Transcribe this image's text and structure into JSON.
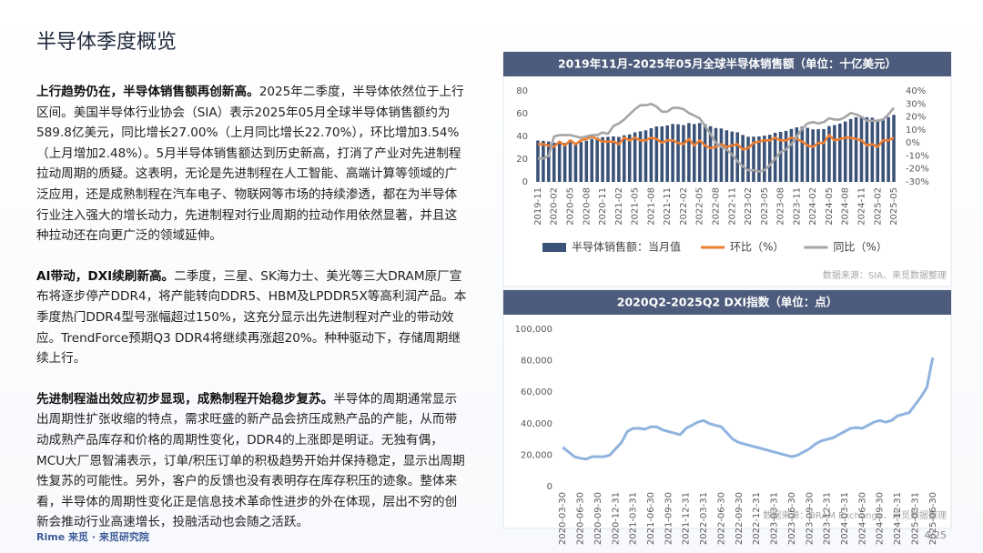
{
  "header": {
    "title": "半导体季度概览"
  },
  "paragraphs": [
    {
      "lead": "上行趋势仍在，半导体销售额再创新高。",
      "body": "2025年二季度，半导体依然位于上行区间。美国半导体行业协会（SIA）表示2025年05月全球半导体销售额约为589.8亿美元，同比增长27.00%（上月同比增长22.70%），环比增加3.54%（上月增加2.48%）。5月半导体销售额达到历史新高，打消了产业对先进制程拉动周期的质疑。这表明，无论是先进制程在人工智能、高端计算等领域的广泛应用，还是成熟制程在汽车电子、物联网等市场的持续渗透，都在为半导体行业注入强大的增长动力，先进制程对行业周期的拉动作用依然显著，并且这种拉动还在向更广泛的领域延伸。"
    },
    {
      "lead": "AI带动，DXI续刷新高。",
      "body": "二季度，三星、SK海力士、美光等三大DRAM原厂宣布将逐步停产DDR4，将产能转向DDR5、HBM及LPDDR5X等高利润产品。本季度热门DDR4型号涨幅超过150%，这充分显示出先进制程对产业的带动效应。TrendForce预期Q3 DDR4将继续再涨超20%。种种驱动下，存储周期继续上行。"
    },
    {
      "lead": "先进制程溢出效应初步显现，成熟制程开始稳步复苏。",
      "body": "半导体的周期通常显示出周期性扩张收缩的特点，需求旺盛的新产品会挤压成熟产品的产能，从而带动成熟产品库存和价格的周期性变化，DDR4的上涨即是明证。无独有偶，MCU大厂恩智浦表示，订单/积压订单的积极趋势开始并保持稳定，显示出周期性复苏的可能性。另外，客户的反馈也没有表明存在库存积压的迹象。整体来看，半导体的周期性变化正是信息技术革命性进步的外在体现，层出不穷的创新会推动行业高速增长，投融活动也会随之活跃。"
    }
  ],
  "chart_data": [
    {
      "type": "combo",
      "title": "2019年11月-2025年05月全球半导体销售额（单位：十亿美元）",
      "categories": [
        "2019-11",
        null,
        null,
        "2020-02",
        null,
        null,
        "2020-05",
        null,
        null,
        "2020-08",
        null,
        null,
        "2020-11",
        null,
        null,
        "2021-02",
        null,
        null,
        "2021-05",
        null,
        null,
        "2021-08",
        null,
        null,
        "2021-11",
        null,
        null,
        "2022-02",
        null,
        null,
        "2022-05",
        null,
        null,
        "2022-08",
        null,
        null,
        "2022-11",
        null,
        null,
        "2023-02",
        null,
        null,
        "2023-05",
        null,
        null,
        "2023-08",
        null,
        null,
        "2023-11",
        null,
        null,
        "2024-02",
        null,
        null,
        "2024-05",
        null,
        null,
        "2024-08",
        null,
        null,
        "2024-11",
        null,
        null,
        "2025-02",
        null,
        null,
        "2025-05"
      ],
      "series": [
        {
          "name": "半导体销售额：当月值",
          "type": "bar",
          "color": "#3b5278",
          "values": [
            36.4,
            36.1,
            35.5,
            34.5,
            35.0,
            34.2,
            35.0,
            34.5,
            35.2,
            36.2,
            37.9,
            39.0,
            39.4,
            39.6,
            40.0,
            39.6,
            41.0,
            41.8,
            43.6,
            44.5,
            45.4,
            47.2,
            48.8,
            48.8,
            49.7,
            50.9,
            50.7,
            50.0,
            51.7,
            50.9,
            51.8,
            50.8,
            49.0,
            47.4,
            47.0,
            45.4,
            44.3,
            43.7,
            41.3,
            39.7,
            39.8,
            40.0,
            40.7,
            41.5,
            43.2,
            44.0,
            44.9,
            46.6,
            48.0,
            48.6,
            47.6,
            46.2,
            46.4,
            46.4,
            49.1,
            50.0,
            51.3,
            53.1,
            55.3,
            56.9,
            57.8,
            56.9,
            56.5,
            54.9,
            55.9,
            57.0,
            59.0
          ]
        },
        {
          "name": "环比（%）",
          "type": "line",
          "axis": "y2",
          "color": "#ed7d31",
          "values": [
            -1,
            -1,
            -2,
            -3,
            1,
            -2,
            2,
            -1,
            2,
            3,
            5,
            3,
            1,
            1,
            1,
            -1,
            4,
            2,
            4,
            2,
            2,
            4,
            3,
            0,
            2,
            2,
            0,
            -1,
            3,
            -2,
            2,
            -2,
            -4,
            -3,
            -1,
            -3,
            -2,
            -1,
            -5,
            -4,
            0,
            1,
            2,
            2,
            4,
            2,
            2,
            4,
            3,
            1,
            -2,
            -3,
            0,
            0,
            6,
            2,
            3,
            4,
            4,
            3,
            2,
            -2,
            -1,
            -3,
            2,
            2,
            4
          ]
        },
        {
          "name": "同比（%）",
          "type": "line",
          "axis": "y2",
          "color": "#a5a5a5",
          "values": [
            -12,
            -12,
            -10,
            5,
            6,
            6,
            6,
            5,
            4,
            5,
            6,
            6,
            8,
            7,
            13,
            15,
            18,
            22,
            26,
            29,
            29,
            30,
            28,
            24,
            24,
            27,
            27,
            26,
            23,
            21,
            19,
            13,
            7,
            0,
            -3,
            -5,
            -9,
            -14,
            -18,
            -21,
            -21,
            -22,
            -21,
            -17,
            -12,
            -7,
            -5,
            -1,
            5,
            11,
            15,
            16,
            15,
            16,
            19,
            18,
            18,
            20,
            23,
            22,
            20,
            17,
            17,
            17,
            18,
            22,
            27
          ]
        }
      ],
      "ylim": [
        0,
        80
      ],
      "yticks": [
        0,
        20,
        40,
        60,
        80
      ],
      "y2lim": [
        -30,
        40
      ],
      "y2ticks": [
        {
          "value": 40,
          "label": "40%"
        },
        {
          "value": 30,
          "label": "30%"
        },
        {
          "value": 20,
          "label": "20%"
        },
        {
          "value": 10,
          "label": "10%"
        },
        {
          "value": 0,
          "label": "0%"
        },
        {
          "value": -10,
          "label": "-10%"
        },
        {
          "value": -20,
          "label": "-20%"
        },
        {
          "value": -30,
          "label": "-30%"
        }
      ],
      "legend": "bottom",
      "grid": false,
      "source": "数据来源：SIA、来觅数据整理"
    },
    {
      "type": "line",
      "title": "2020Q2-2025Q2 DXI指数（单位：点）",
      "categories": [
        "2020-03-30",
        null,
        null,
        "2020-06-30",
        null,
        null,
        "2020-09-30",
        null,
        null,
        "2020-12-31",
        null,
        null,
        "2021-03-31",
        null,
        null,
        "2021-06-30",
        null,
        null,
        "2021-09-30",
        null,
        null,
        "2021-12-31",
        null,
        null,
        "2022-03-31",
        null,
        null,
        "2022-06-30",
        null,
        null,
        "2022-09-30",
        null,
        null,
        "2022-12-31",
        null,
        null,
        "2023-03-31",
        null,
        null,
        "2023-06-30",
        null,
        null,
        "2023-09-30",
        null,
        null,
        "2023-12-31",
        null,
        null,
        "2024-03-31",
        null,
        null,
        "2024-06-30",
        null,
        null,
        "2024-09-30",
        null,
        null,
        "2024-12-31",
        null,
        null,
        "2025-03-31",
        null,
        null,
        "2025-06-30"
      ],
      "values": [
        25000,
        22000,
        19000,
        18000,
        17500,
        19000,
        19000,
        19000,
        20000,
        24000,
        28000,
        35000,
        37000,
        37000,
        36500,
        38000,
        38000,
        36000,
        35000,
        34000,
        33000,
        37000,
        39000,
        41000,
        42000,
        40000,
        39000,
        38000,
        34000,
        30000,
        28000,
        27000,
        26000,
        25000,
        24000,
        23000,
        22000,
        21000,
        20000,
        19000,
        20000,
        22000,
        24000,
        27000,
        29000,
        30000,
        31000,
        33000,
        35000,
        37000,
        37500,
        37000,
        39000,
        41000,
        42000,
        41000,
        42000,
        45000,
        46000,
        47000,
        52000,
        57000,
        63000,
        82000
      ],
      "color": "#8fb3de",
      "ylim": [
        0,
        100000
      ],
      "yticks": [
        0,
        {
          "value": 20000,
          "label": "20,000"
        },
        {
          "value": 40000,
          "label": "40,000"
        },
        {
          "value": 60000,
          "label": "60,000"
        },
        {
          "value": 80000,
          "label": "80,000"
        },
        {
          "value": 100000,
          "label": "100,000"
        }
      ],
      "grid": false,
      "source": "数据来源：DRAM Exchange、来觅数据整理"
    }
  ],
  "footer": {
    "brand": "Rime 来觅 · 来觅研究院",
    "page": "4/25"
  }
}
